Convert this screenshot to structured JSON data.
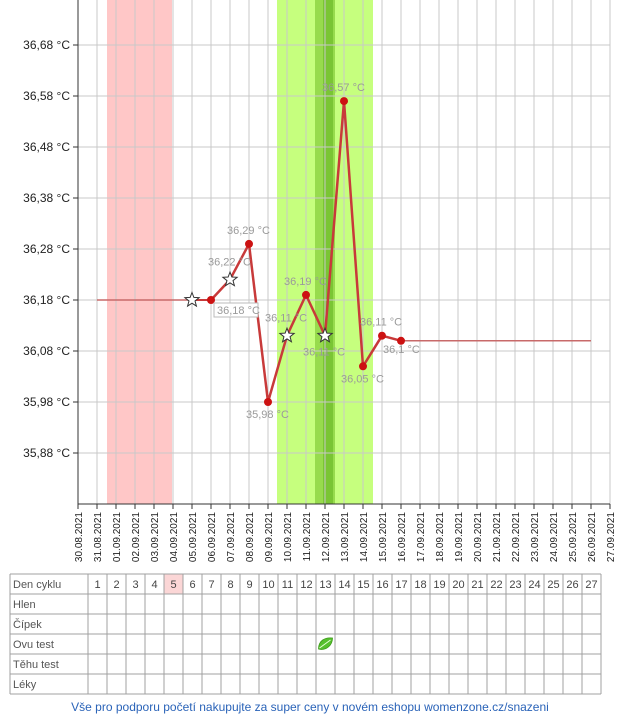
{
  "colors": {
    "period_band": "#ffc7c7",
    "fertile_band": "#c6ff7e",
    "ovulation_band": "#97db4d",
    "ovulation_center": "#7ac534",
    "line": "#c83a3a",
    "point": "#cc1212",
    "baseline": "#c86a6a",
    "grid": "#c8c8c8",
    "today_cell": "#fbd6d6",
    "ovu_leaf": "#56c02d",
    "footer_text": "#2a63b8"
  },
  "chart_data": {
    "type": "line",
    "title": "",
    "xlabel": "",
    "ylabel": "",
    "categories": [
      "30.08.2021",
      "31.08.2021",
      "01.09.2021",
      "02.09.2021",
      "03.09.2021",
      "04.09.2021",
      "05.09.2021",
      "06.09.2021",
      "07.09.2021",
      "08.09.2021",
      "09.09.2021",
      "10.09.2021",
      "11.09.2021",
      "12.09.2021",
      "13.09.2021",
      "14.09.2021",
      "15.09.2021",
      "16.09.2021",
      "17.09.2021",
      "18.09.2021",
      "19.09.2021",
      "20.09.2021",
      "21.09.2021",
      "22.09.2021",
      "23.09.2021",
      "24.09.2021",
      "25.09.2021",
      "26.09.2021",
      "27.09.2021"
    ],
    "y_ticks": [
      "36,68 °C",
      "36,58 °C",
      "36,48 °C",
      "36,38 °C",
      "36,28 °C",
      "36,18 °C",
      "36,08 °C",
      "35,98 °C",
      "35,88 °C"
    ],
    "y_tick_values": [
      36.68,
      36.58,
      36.48,
      36.38,
      36.28,
      36.18,
      36.08,
      35.98,
      35.88
    ],
    "ylim": [
      35.79,
      36.78
    ],
    "grid": true,
    "series": [
      {
        "points": [
          {
            "x": "06.09.2021",
            "y": 36.18,
            "label": "",
            "marker": "dot"
          },
          {
            "x": "07.09.2021",
            "y": 36.22,
            "label": "36,22 °C",
            "marker": "star"
          },
          {
            "x": "08.09.2021",
            "y": 36.29,
            "label": "36,29 °C",
            "marker": "dot"
          },
          {
            "x": "09.09.2021",
            "y": 35.98,
            "label": "35,98 °C",
            "marker": "dot"
          },
          {
            "x": "10.09.2021",
            "y": 36.11,
            "label": "36,11 °C",
            "marker": "star"
          },
          {
            "x": "11.09.2021",
            "y": 36.19,
            "label": "36,19 °C",
            "marker": "dot"
          },
          {
            "x": "12.09.2021",
            "y": 36.11,
            "label": "36,11 °C",
            "marker": "star"
          },
          {
            "x": "13.09.2021",
            "y": 36.57,
            "label": "36,57 °C",
            "marker": "dot"
          },
          {
            "x": "14.09.2021",
            "y": 36.05,
            "label": "36,05 °C",
            "marker": "dot"
          },
          {
            "x": "15.09.2021",
            "y": 36.11,
            "label": "36,11 °C",
            "marker": "dot"
          },
          {
            "x": "16.09.2021",
            "y": 36.1,
            "label": "36,1 °C",
            "marker": "dot"
          }
        ]
      }
    ],
    "baseline_before": {
      "from": "31.08.2021",
      "to": "05.09.2021",
      "y": 36.18,
      "label": "36,18 °C",
      "star_at": "05.09.2021"
    },
    "baseline_after": {
      "from": "16.09.2021",
      "to": "26.09.2021",
      "y": 36.1
    },
    "period_band": {
      "from": "31.08.2021",
      "to": "03.09.2021"
    },
    "fertile_band": {
      "from": "10.09.2021",
      "to": "14.09.2021"
    },
    "ovulation_day": "12.09.2021"
  },
  "table": {
    "row_labels": [
      "Den cyklu",
      "Hlen",
      "Čípek",
      "Ovu test",
      "Těhu test",
      "Léky"
    ],
    "days": [
      "1",
      "2",
      "3",
      "4",
      "5",
      "6",
      "7",
      "8",
      "9",
      "10",
      "11",
      "12",
      "13",
      "14",
      "15",
      "16",
      "17",
      "18",
      "19",
      "20",
      "21",
      "22",
      "23",
      "24",
      "25",
      "26",
      "27"
    ],
    "highlighted_day": "5",
    "ovu_test_day": "13",
    "ovu_icon": "leaf-icon"
  },
  "footer": {
    "text": "Vše pro podporu početí nakupujte za super ceny v novém eshopu womenzone.cz/snazeni"
  }
}
